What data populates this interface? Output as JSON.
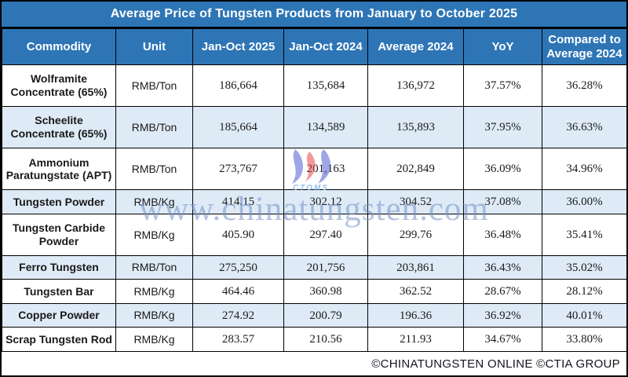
{
  "title": "Average Price of Tungsten Products from January to October 2025",
  "table": {
    "columns": [
      "Commodity",
      "Unit",
      "Jan-Oct 2025",
      "Jan-Oct 2024",
      "Average 2024",
      "YoY",
      "Compared to Average 2024"
    ],
    "rows": [
      {
        "commodity": "Wolframite Concentrate (65%)",
        "unit": "RMB/Ton",
        "jan_oct_2025": "186,664",
        "jan_oct_2024": "135,684",
        "average_2024": "136,972",
        "yoy": "37.57%",
        "compared_to_average_2024": "36.28%"
      },
      {
        "commodity": "Scheelite Concentrate (65%)",
        "unit": "RMB/Ton",
        "jan_oct_2025": "185,664",
        "jan_oct_2024": "134,589",
        "average_2024": "135,893",
        "yoy": "37.95%",
        "compared_to_average_2024": "36.63%"
      },
      {
        "commodity": "Ammonium Paratungstate (APT)",
        "unit": "RMB/Ton",
        "jan_oct_2025": "273,767",
        "jan_oct_2024": "201,163",
        "average_2024": "202,849",
        "yoy": "36.09%",
        "compared_to_average_2024": "34.96%"
      },
      {
        "commodity": "Tungsten Powder",
        "unit": "RMB/Kg",
        "jan_oct_2025": "414.15",
        "jan_oct_2024": "302.12",
        "average_2024": "304.52",
        "yoy": "37.08%",
        "compared_to_average_2024": "36.00%"
      },
      {
        "commodity": "Tungsten Carbide Powder",
        "unit": "RMB/Kg",
        "jan_oct_2025": "405.90",
        "jan_oct_2024": "297.40",
        "average_2024": "299.76",
        "yoy": "36.48%",
        "compared_to_average_2024": "35.41%"
      },
      {
        "commodity": "Ferro Tungsten",
        "unit": "RMB/Ton",
        "jan_oct_2025": "275,250",
        "jan_oct_2024": "201,756",
        "average_2024": "203,861",
        "yoy": "36.43%",
        "compared_to_average_2024": "35.02%"
      },
      {
        "commodity": "Tungsten Bar",
        "unit": "RMB/Kg",
        "jan_oct_2025": "464.46",
        "jan_oct_2024": "360.98",
        "average_2024": "362.52",
        "yoy": "28.67%",
        "compared_to_average_2024": "28.12%"
      },
      {
        "commodity": "Copper Powder",
        "unit": "RMB/Kg",
        "jan_oct_2025": "274.92",
        "jan_oct_2024": "200.79",
        "average_2024": "196.36",
        "yoy": "36.92%",
        "compared_to_average_2024": "40.01%"
      },
      {
        "commodity": "Scrap Tungsten Rod",
        "unit": "RMB/Kg",
        "jan_oct_2025": "283.57",
        "jan_oct_2024": "210.56",
        "average_2024": "211.93",
        "yoy": "34.67%",
        "compared_to_average_2024": "33.80%"
      }
    ]
  },
  "watermark": {
    "logo_icon": "ctoms-swoosh-logo-icon",
    "logo_label": "CTOMS",
    "url": "www.chinatungsten.com"
  },
  "footer": {
    "copyright": "©CHINATUNGSTEN ONLINE ©CTIA GROUP"
  },
  "colors": {
    "header_blue": "#2e75b6",
    "alt_row_blue": "#deeaf6",
    "percent_red": "#e03238",
    "grid_black": "#000000",
    "title_text": "#ffffff",
    "watermark_blue": "rgba(115,143,200,0.55)"
  }
}
